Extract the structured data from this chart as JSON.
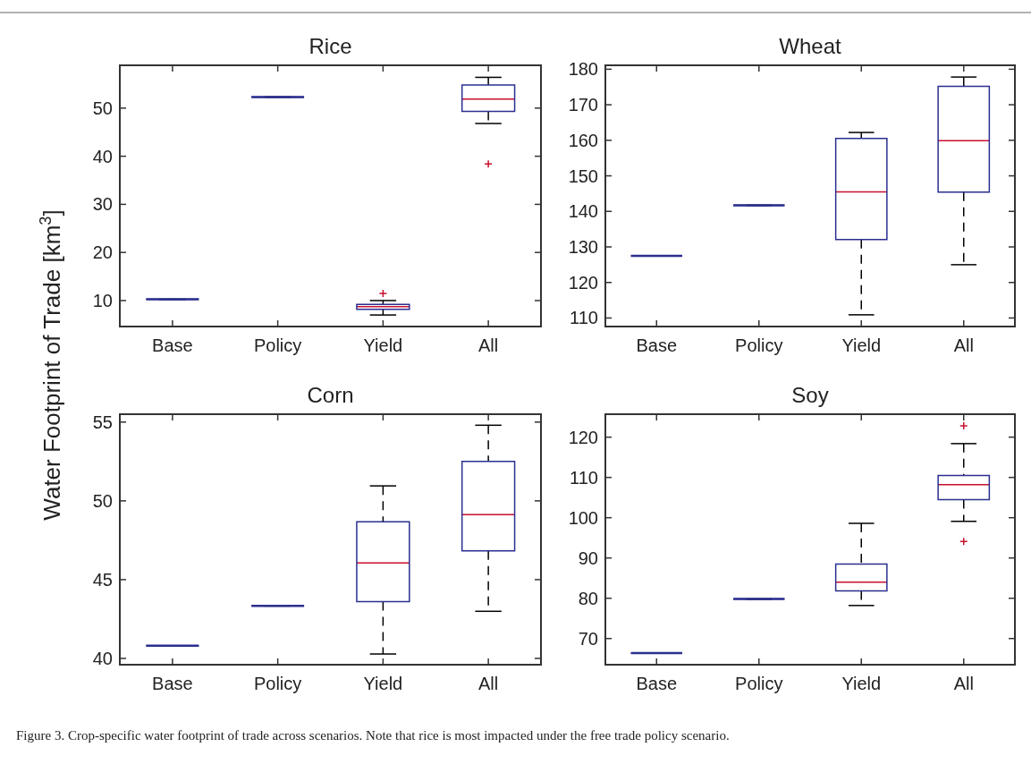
{
  "chart_data": [
    {
      "type": "box",
      "title": "Rice",
      "ylabel": "Water Footprint of Trade [km$^{3}$]",
      "categories": [
        "Base",
        "Policy",
        "Yield",
        "All"
      ],
      "ylim": [
        4.6,
        58.9
      ],
      "yticks": [
        10,
        20,
        30,
        40,
        50
      ],
      "annotations": [
        "Figure 3. Crop-specific water footprint of trade across scenarios. Note that rice is most impacted under the free trade policy scenario."
      ],
      "series": [
        {
          "color": "#2b2f8f",
          "boxes": [
            {
              "low": 10.25,
              "q1": 10.25,
              "median": 10.25,
              "q3": 10.25,
              "high": 10.25
            },
            {
              "low": 52.3,
              "q1": 52.3,
              "median": 52.3,
              "q3": 52.3,
              "high": 52.3
            },
            {
              "low": 7.0,
              "q1": 8.2,
              "median": 8.75,
              "q3": 9.2,
              "high": 10.0,
              "outliers": [
                11.5
              ]
            },
            {
              "low": 46.8,
              "q1": 49.3,
              "median": 51.9,
              "q3": 54.8,
              "high": 56.4,
              "outliers": [
                38.4
              ]
            }
          ]
        }
      ]
    },
    {
      "type": "box",
      "title": "Wheat",
      "categories": [
        "Base",
        "Policy",
        "Yield",
        "All"
      ],
      "ylim": [
        107.6,
        181.1
      ],
      "yticks": [
        110,
        120,
        130,
        140,
        150,
        160,
        170,
        180
      ],
      "series": [
        {
          "color": "#2b2f8f",
          "boxes": [
            {
              "low": 127.5,
              "q1": 127.5,
              "median": 127.5,
              "q3": 127.5,
              "high": 127.5
            },
            {
              "low": 141.7,
              "q1": 141.7,
              "median": 141.7,
              "q3": 141.7,
              "high": 141.7
            },
            {
              "low": 110.9,
              "q1": 132.1,
              "median": 145.5,
              "q3": 160.5,
              "high": 162.2
            },
            {
              "low": 125.0,
              "q1": 145.4,
              "median": 159.9,
              "q3": 175.2,
              "high": 177.8
            }
          ]
        }
      ]
    },
    {
      "type": "box",
      "title": "Corn",
      "categories": [
        "Base",
        "Policy",
        "Yield",
        "All"
      ],
      "ylim": [
        39.6,
        55.5
      ],
      "yticks": [
        40,
        45,
        50,
        55
      ],
      "series": [
        {
          "color": "#2b2f8f",
          "boxes": [
            {
              "low": 40.8,
              "q1": 40.8,
              "median": 40.8,
              "q3": 40.8,
              "high": 40.8
            },
            {
              "low": 43.33,
              "q1": 43.33,
              "median": 43.33,
              "q3": 43.33,
              "high": 43.33
            },
            {
              "low": 40.28,
              "q1": 43.6,
              "median": 46.06,
              "q3": 48.67,
              "high": 50.95
            },
            {
              "low": 42.99,
              "q1": 46.82,
              "median": 49.13,
              "q3": 52.5,
              "high": 54.8
            }
          ]
        }
      ]
    },
    {
      "type": "box",
      "title": "Soy",
      "categories": [
        "Base",
        "Policy",
        "Yield",
        "All"
      ],
      "ylim": [
        63.5,
        125.7
      ],
      "yticks": [
        70,
        80,
        90,
        100,
        110,
        120
      ],
      "series": [
        {
          "color": "#2b2f8f",
          "boxes": [
            {
              "low": 66.4,
              "q1": 66.4,
              "median": 66.4,
              "q3": 66.4,
              "high": 66.4
            },
            {
              "low": 79.8,
              "q1": 79.8,
              "median": 79.8,
              "q3": 79.8,
              "high": 79.8
            },
            {
              "low": 78.2,
              "q1": 81.8,
              "median": 84.0,
              "q3": 88.5,
              "high": 98.6
            },
            {
              "low": 99.1,
              "q1": 104.5,
              "median": 108.2,
              "q3": 110.5,
              "high": 118.4,
              "outliers": [
                122.8,
                94.1
              ]
            }
          ]
        }
      ]
    }
  ]
}
